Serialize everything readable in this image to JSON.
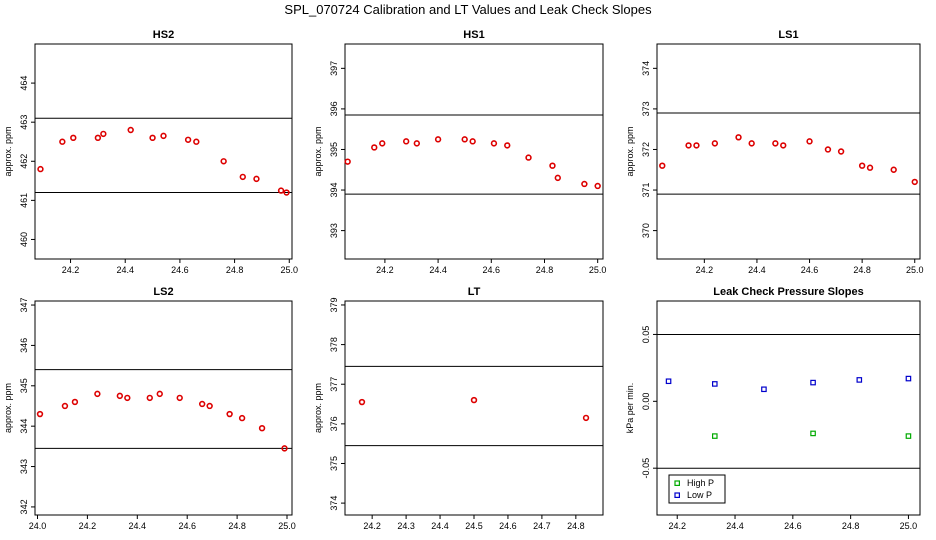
{
  "title": "SPL_070724  Calibration and LT Values and Leak Check Slopes",
  "chart_data": [
    {
      "type": "scatter",
      "title": "HS2",
      "ylabel": "approx. ppm",
      "xlim": [
        24.07,
        25.01
      ],
      "ylim": [
        459.5,
        465.0
      ],
      "xticks": [
        "24.2",
        "24.4",
        "24.6",
        "24.8",
        "25.0"
      ],
      "yticks": [
        "460",
        "461",
        "462",
        "463",
        "464"
      ],
      "hlines": [
        463.1,
        461.2
      ],
      "series": [
        {
          "color": "#dd0000",
          "marker": "circle",
          "x": [
            24.09,
            24.17,
            24.21,
            24.3,
            24.32,
            24.42,
            24.5,
            24.54,
            24.63,
            24.66,
            24.76,
            24.83,
            24.88,
            24.97,
            24.99
          ],
          "y": [
            461.8,
            462.5,
            462.6,
            462.6,
            462.7,
            462.8,
            462.6,
            462.65,
            462.55,
            462.5,
            462.0,
            461.6,
            461.55,
            461.25,
            461.2
          ]
        }
      ]
    },
    {
      "type": "scatter",
      "title": "HS1",
      "ylabel": "approx. ppm",
      "xlim": [
        24.05,
        25.02
      ],
      "ylim": [
        392.3,
        397.6
      ],
      "xticks": [
        "24.2",
        "24.4",
        "24.6",
        "24.8",
        "25.0"
      ],
      "yticks": [
        "393",
        "394",
        "395",
        "396",
        "397"
      ],
      "hlines": [
        395.85,
        393.9
      ],
      "series": [
        {
          "color": "#dd0000",
          "marker": "circle",
          "x": [
            24.06,
            24.16,
            24.19,
            24.28,
            24.32,
            24.4,
            24.5,
            24.53,
            24.61,
            24.66,
            24.74,
            24.83,
            24.85,
            24.95,
            25.0
          ],
          "y": [
            394.7,
            395.05,
            395.15,
            395.2,
            395.15,
            395.25,
            395.25,
            395.2,
            395.15,
            395.1,
            394.8,
            394.6,
            394.3,
            394.15,
            394.1
          ]
        }
      ]
    },
    {
      "type": "scatter",
      "title": "LS1",
      "ylabel": "approx. ppm",
      "xlim": [
        24.02,
        25.02
      ],
      "ylim": [
        369.3,
        374.6
      ],
      "xticks": [
        "24.2",
        "24.4",
        "24.6",
        "24.8",
        "25.0"
      ],
      "yticks": [
        "370",
        "371",
        "372",
        "373",
        "374"
      ],
      "hlines": [
        372.9,
        370.9
      ],
      "series": [
        {
          "color": "#dd0000",
          "marker": "circle",
          "x": [
            24.04,
            24.14,
            24.17,
            24.24,
            24.33,
            24.38,
            24.47,
            24.5,
            24.6,
            24.67,
            24.72,
            24.8,
            24.83,
            24.92,
            25.0
          ],
          "y": [
            371.6,
            372.1,
            372.1,
            372.15,
            372.3,
            372.15,
            372.15,
            372.1,
            372.2,
            372.0,
            371.95,
            371.6,
            371.55,
            371.5,
            371.2
          ]
        }
      ]
    },
    {
      "type": "scatter",
      "title": "LS2",
      "ylabel": "approx. ppm",
      "xlim": [
        23.99,
        25.02
      ],
      "ylim": [
        341.8,
        347.1
      ],
      "xticks": [
        "24.0",
        "24.2",
        "24.4",
        "24.6",
        "24.8",
        "25.0"
      ],
      "yticks": [
        "342",
        "343",
        "344",
        "345",
        "346",
        "347"
      ],
      "hlines": [
        345.4,
        343.45
      ],
      "series": [
        {
          "color": "#dd0000",
          "marker": "circle",
          "x": [
            24.01,
            24.11,
            24.15,
            24.24,
            24.33,
            24.36,
            24.45,
            24.49,
            24.57,
            24.66,
            24.69,
            24.77,
            24.82,
            24.9,
            24.99
          ],
          "y": [
            344.3,
            344.5,
            344.6,
            344.8,
            344.75,
            344.7,
            344.7,
            344.8,
            344.7,
            344.55,
            344.5,
            344.3,
            344.2,
            343.95,
            343.45
          ]
        }
      ]
    },
    {
      "type": "scatter",
      "title": "LT",
      "ylabel": "approx. ppm",
      "xlim": [
        24.12,
        24.88
      ],
      "ylim": [
        373.7,
        379.1
      ],
      "xticks": [
        "24.2",
        "24.3",
        "24.4",
        "24.5",
        "24.6",
        "24.7",
        "24.8"
      ],
      "yticks": [
        "374",
        "375",
        "376",
        "377",
        "378",
        "379"
      ],
      "hlines": [
        377.45,
        375.45
      ],
      "series": [
        {
          "color": "#dd0000",
          "marker": "circle",
          "x": [
            24.17,
            24.5,
            24.83
          ],
          "y": [
            376.55,
            376.6,
            376.15
          ]
        }
      ]
    },
    {
      "type": "scatter",
      "title": "Leak Check Pressure Slopes",
      "ylabel": "kPa per min.",
      "xlim": [
        24.13,
        25.04
      ],
      "ylim": [
        -0.085,
        0.075
      ],
      "xticks": [
        "24.2",
        "24.4",
        "24.6",
        "24.8",
        "25.0"
      ],
      "yticks": [
        "-0.05",
        "0.00",
        "0.05"
      ],
      "hlines": [
        0.05,
        -0.05
      ],
      "legend": "bottom-left",
      "series": [
        {
          "name": "High P",
          "color": "#00aa00",
          "marker": "square",
          "x": [
            24.33,
            24.67,
            25.0
          ],
          "y": [
            -0.026,
            -0.024,
            -0.026
          ]
        },
        {
          "name": "Low P",
          "color": "#0000cc",
          "marker": "square",
          "x": [
            24.17,
            24.33,
            24.5,
            24.67,
            24.83,
            25.0
          ],
          "y": [
            0.015,
            0.013,
            0.009,
            0.014,
            0.016,
            0.017
          ]
        }
      ]
    }
  ]
}
